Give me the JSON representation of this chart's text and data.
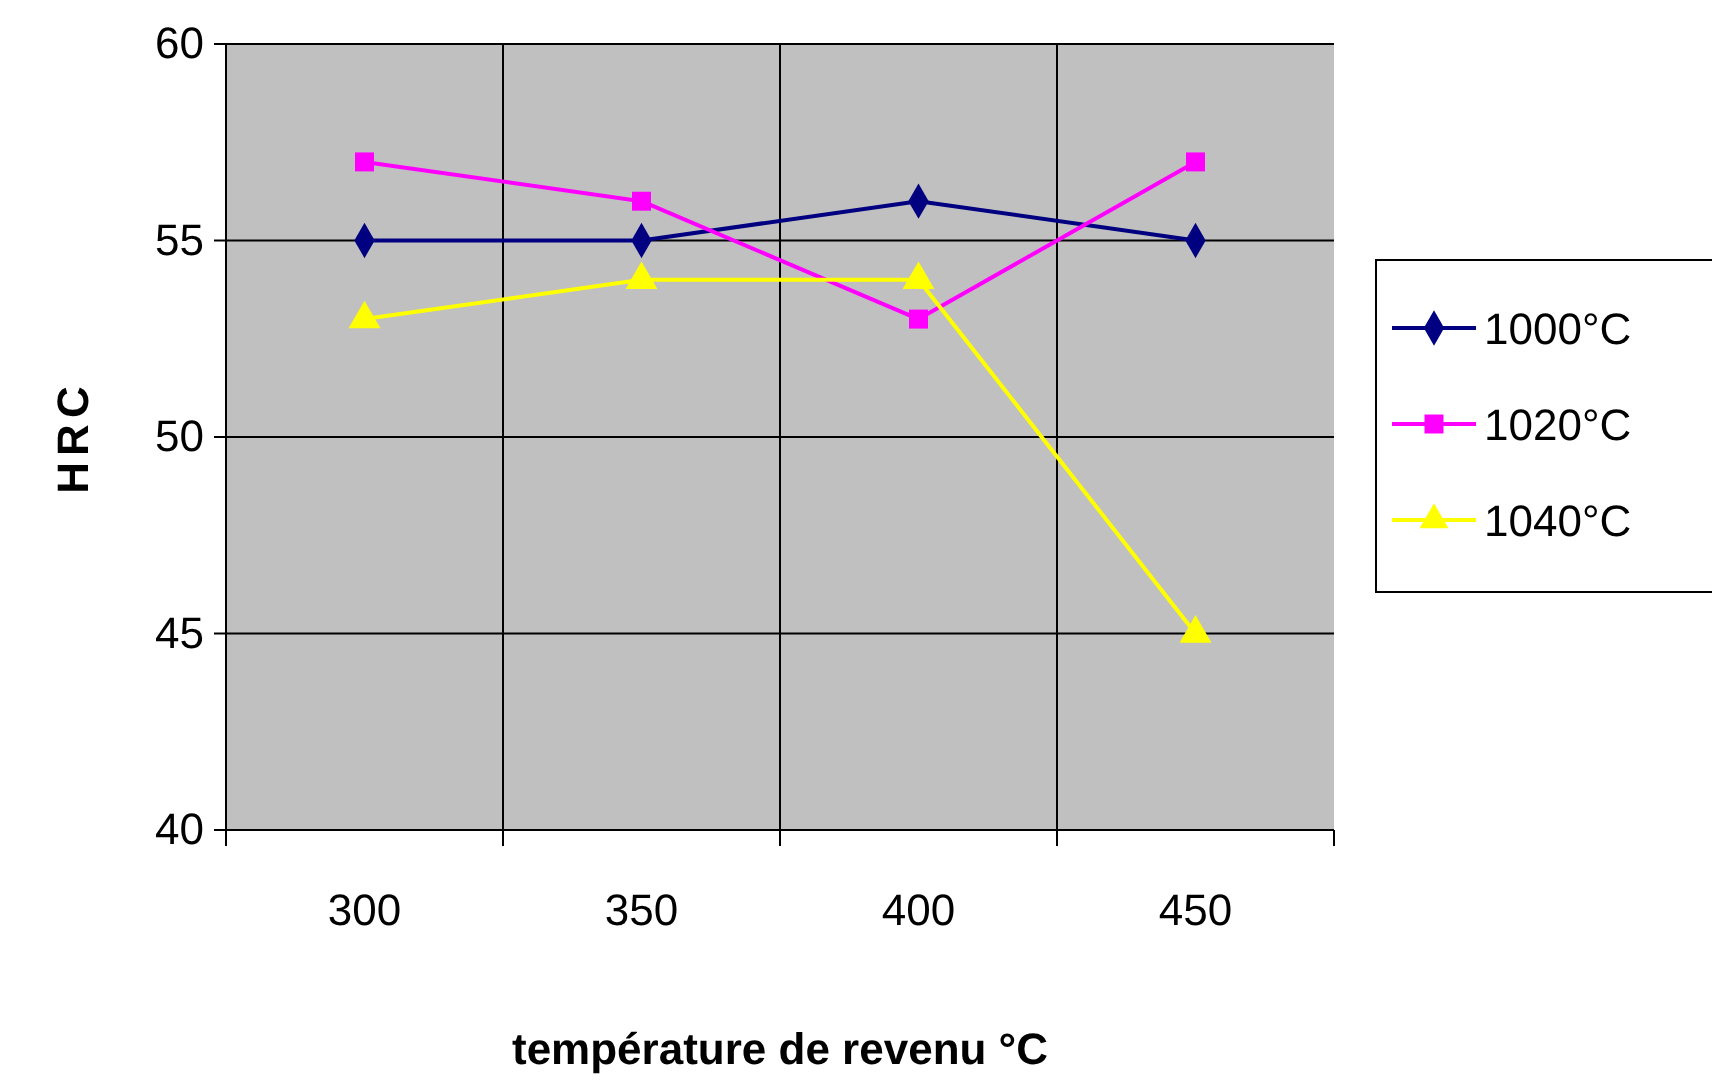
{
  "chart_data": {
    "type": "line",
    "xlabel": "température de revenu °C",
    "ylabel": "HRC",
    "categories": [
      "300",
      "350",
      "400",
      "450"
    ],
    "series": [
      {
        "name": "1000°C",
        "color": "#000080",
        "marker": "diamond",
        "values": [
          55,
          55,
          56,
          55
        ]
      },
      {
        "name": "1020°C",
        "color": "#ff00ff",
        "marker": "square",
        "values": [
          57,
          56,
          53,
          57
        ]
      },
      {
        "name": "1040°C",
        "color": "#ffff00",
        "marker": "triangle",
        "values": [
          53,
          54,
          54,
          45
        ]
      }
    ],
    "ylim": [
      40,
      60
    ],
    "yticks": [
      40,
      45,
      50,
      55,
      60
    ],
    "grid": true,
    "legend": "right",
    "line_style": "solid"
  }
}
